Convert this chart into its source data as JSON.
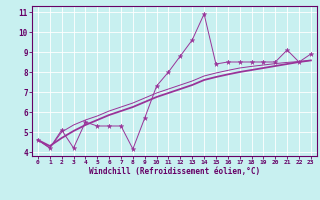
{
  "title": "",
  "xlabel": "Windchill (Refroidissement éolien,°C)",
  "ylabel": "",
  "bg_color": "#c8f0f0",
  "line_color": "#993399",
  "grid_color": "#ffffff",
  "text_color": "#660066",
  "xlim": [
    -0.5,
    23.5
  ],
  "ylim": [
    3.8,
    11.3
  ],
  "xticks": [
    0,
    1,
    2,
    3,
    4,
    5,
    6,
    7,
    8,
    9,
    10,
    11,
    12,
    13,
    14,
    15,
    16,
    17,
    18,
    19,
    20,
    21,
    22,
    23
  ],
  "yticks": [
    4,
    5,
    6,
    7,
    8,
    9,
    10,
    11
  ],
  "x_data": [
    0,
    1,
    2,
    3,
    4,
    5,
    6,
    7,
    8,
    9,
    10,
    11,
    12,
    13,
    14,
    15,
    16,
    17,
    18,
    19,
    20,
    21,
    22,
    23
  ],
  "y_line1": [
    4.6,
    4.2,
    5.1,
    4.2,
    5.5,
    5.3,
    5.3,
    5.3,
    4.15,
    5.7,
    7.3,
    8.0,
    8.8,
    9.6,
    10.9,
    8.4,
    8.5,
    8.5,
    8.5,
    8.5,
    8.5,
    9.1,
    8.5,
    8.9
  ],
  "y_line2": [
    4.6,
    4.3,
    4.7,
    5.05,
    5.35,
    5.6,
    5.85,
    6.05,
    6.25,
    6.5,
    6.75,
    6.95,
    7.15,
    7.35,
    7.6,
    7.75,
    7.88,
    8.0,
    8.1,
    8.2,
    8.3,
    8.4,
    8.5,
    8.58
  ],
  "y_line3": [
    4.6,
    4.2,
    5.0,
    5.35,
    5.6,
    5.8,
    6.05,
    6.25,
    6.45,
    6.7,
    6.95,
    7.15,
    7.35,
    7.55,
    7.8,
    7.95,
    8.08,
    8.2,
    8.28,
    8.35,
    8.42,
    8.48,
    8.52,
    8.58
  ]
}
